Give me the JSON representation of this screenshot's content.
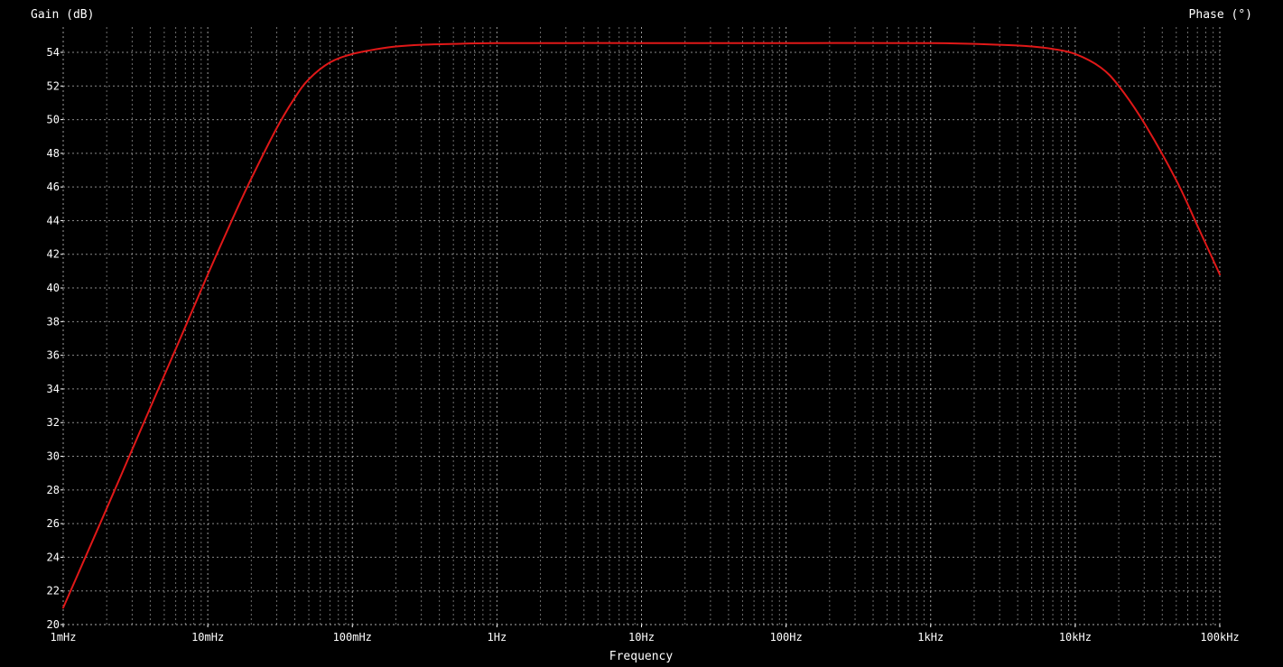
{
  "chart_data": {
    "type": "line",
    "xscale": "log",
    "xlim_hz": [
      0.001,
      100000
    ],
    "ylim": [
      20,
      55.5
    ],
    "left_axis_label": "Gain (dB)",
    "right_axis_label": "Phase (°)",
    "xlabel": "Frequency",
    "background": "#000000",
    "grid": true,
    "grid_color": "#b8b8b8",
    "trace_color": "#e01818",
    "x_ticks": [
      {
        "value": 0.001,
        "label": "1mHz"
      },
      {
        "value": 0.01,
        "label": "10mHz"
      },
      {
        "value": 0.1,
        "label": "100mHz"
      },
      {
        "value": 1,
        "label": "1Hz"
      },
      {
        "value": 10,
        "label": "10Hz"
      },
      {
        "value": 100,
        "label": "100Hz"
      },
      {
        "value": 1000,
        "label": "1kHz"
      },
      {
        "value": 10000,
        "label": "10kHz"
      },
      {
        "value": 100000,
        "label": "100kHz"
      }
    ],
    "y_ticks": [
      20,
      22,
      24,
      26,
      28,
      30,
      32,
      34,
      36,
      38,
      40,
      42,
      44,
      46,
      48,
      50,
      52,
      54
    ],
    "series": [
      {
        "x": [
          0.001,
          0.002,
          0.003,
          0.005,
          0.007,
          0.01,
          0.015,
          0.02,
          0.03,
          0.04,
          0.05,
          0.07,
          0.1,
          0.15,
          0.2,
          0.3,
          0.5,
          1,
          10,
          100,
          1000,
          3000,
          5000,
          7000,
          10000,
          15000,
          20000,
          30000,
          50000,
          70000,
          100000
        ],
        "y": [
          21.0,
          26.9,
          30.4,
          34.8,
          37.7,
          40.8,
          44.2,
          46.5,
          49.5,
          51.3,
          52.4,
          53.4,
          53.9,
          54.2,
          54.35,
          54.45,
          54.5,
          54.55,
          54.55,
          54.55,
          54.55,
          54.45,
          54.35,
          54.2,
          53.9,
          53.1,
          52.0,
          49.8,
          46.4,
          43.7,
          40.8
        ]
      }
    ]
  }
}
